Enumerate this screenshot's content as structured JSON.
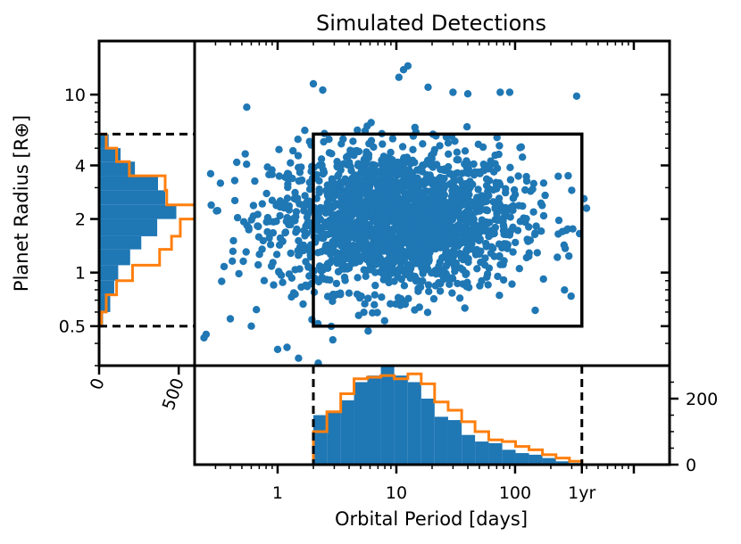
{
  "chart_data": {
    "type": "scatter",
    "title": "Simulated Detections",
    "xlabel": "Orbital Period [days]",
    "ylabel": "Planet Radius [R⊕]",
    "x_scale": "log",
    "y_scale": "log",
    "xlim": [
      0.2,
      2000
    ],
    "ylim": [
      0.3,
      20
    ],
    "x_ticks": [
      {
        "value": 1,
        "label": "1"
      },
      {
        "value": 10,
        "label": "10"
      },
      {
        "value": 100,
        "label": "100"
      },
      {
        "value": 365,
        "label": "1yr"
      }
    ],
    "y_ticks": [
      {
        "value": 0.5,
        "label": "0.5"
      },
      {
        "value": 1,
        "label": "1"
      },
      {
        "value": 2,
        "label": "2"
      },
      {
        "value": 4,
        "label": "4"
      },
      {
        "value": 10,
        "label": "10"
      }
    ],
    "scatter": {
      "color": "#1f77b4",
      "n_points": 2000,
      "distribution": "clustered around period 10 days, radius 2 R⊕",
      "outliers": [
        [
          12.5,
          14.5
        ],
        [
          11.5,
          13.8
        ],
        [
          10.5,
          12.5
        ],
        [
          2.0,
          11.5
        ],
        [
          2.4,
          10.6
        ],
        [
          18.5,
          11.0
        ],
        [
          30.0,
          10.3
        ],
        [
          40.0,
          10.1
        ],
        [
          75.0,
          10.3
        ],
        [
          90.0,
          10.3
        ],
        [
          330.0,
          9.8
        ],
        [
          0.55,
          8.5
        ],
        [
          1.5,
          0.33
        ],
        [
          2.2,
          0.31
        ],
        [
          1.2,
          0.38
        ],
        [
          1.0,
          0.37
        ],
        [
          0.25,
          0.45
        ],
        [
          0.24,
          0.43
        ],
        [
          0.4,
          0.55
        ],
        [
          0.6,
          0.5
        ],
        [
          400.0,
          2.3
        ],
        [
          380.0,
          2.6
        ],
        [
          250.0,
          1.7
        ],
        [
          300.0,
          2.9
        ],
        [
          280.0,
          3.5
        ]
      ]
    },
    "box": {
      "x": [
        2,
        365
      ],
      "y": [
        0.5,
        6
      ]
    },
    "hist_y": {
      "xlim": [
        0,
        600
      ],
      "ticks": [
        {
          "value": 0,
          "label": "0"
        },
        {
          "value": 500,
          "label": "500"
        }
      ],
      "bin_edges": [
        0.5,
        0.6,
        0.75,
        0.9,
        1.1,
        1.35,
        1.6,
        2.0,
        2.4,
        2.9,
        3.5,
        4.2,
        5.0,
        6.0
      ],
      "detected": [
        25,
        70,
        95,
        120,
        195,
        265,
        365,
        485,
        415,
        370,
        225,
        135,
        60
      ],
      "model": [
        15,
        45,
        110,
        210,
        380,
        455,
        510,
        600,
        425,
        415,
        190,
        110,
        45
      ],
      "detected_color": "#1f77b4",
      "model_color": "#ff7f0e"
    },
    "hist_x": {
      "ylim": [
        0,
        300
      ],
      "ticks": [
        {
          "value": 0,
          "label": "0"
        },
        {
          "value": 200,
          "label": "200"
        }
      ],
      "bin_edges": [
        2,
        2.6,
        3.4,
        4.4,
        5.7,
        7.4,
        9.6,
        12.5,
        16.2,
        21,
        27.3,
        35.5,
        46,
        60,
        78,
        101,
        131,
        170,
        221,
        287,
        365
      ],
      "detected": [
        150,
        160,
        195,
        250,
        270,
        300,
        270,
        250,
        200,
        145,
        135,
        90,
        70,
        65,
        45,
        35,
        30,
        20,
        10,
        5
      ],
      "model": [
        100,
        160,
        215,
        260,
        265,
        270,
        260,
        275,
        245,
        190,
        165,
        130,
        100,
        75,
        70,
        55,
        45,
        30,
        20,
        10
      ],
      "detected_color": "#1f77b4",
      "model_color": "#ff7f0e"
    }
  }
}
